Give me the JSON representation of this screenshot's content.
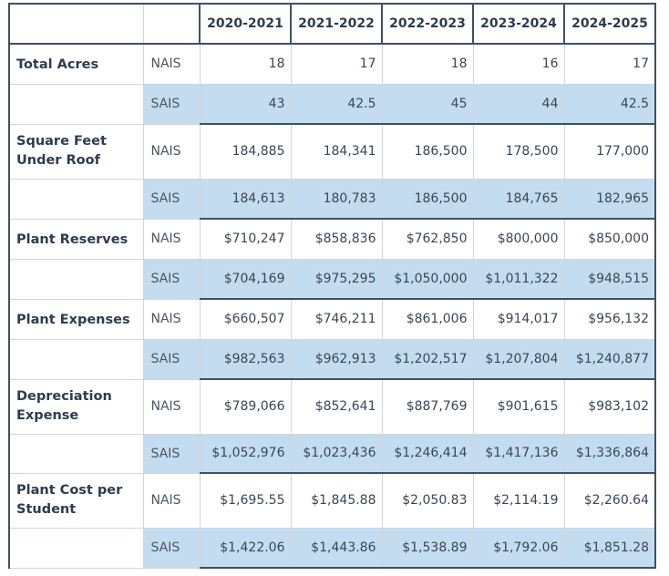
{
  "headers": {
    "years": [
      "2020-2021",
      "2021-2022",
      "2022-2023",
      "2023-2024",
      "2024-2025"
    ]
  },
  "rows": [
    {
      "label": "Total Acres",
      "nais": [
        "18",
        "17",
        "18",
        "16",
        "17"
      ],
      "sais": [
        "43",
        "42.5",
        "45",
        "44",
        "42.5"
      ]
    },
    {
      "label": "Square Feet Under Roof",
      "nais": [
        "184,885",
        "184,341",
        "186,500",
        "178,500",
        "177,000"
      ],
      "sais": [
        "184,613",
        "180,783",
        "186,500",
        "184,765",
        "182,965"
      ]
    },
    {
      "label": "Plant Reserves",
      "nais": [
        "$710,247",
        "$858,836",
        "$762,850",
        "$800,000",
        "$850,000"
      ],
      "sais": [
        "$704,169",
        "$975,295",
        "$1,050,000",
        "$1,011,322",
        "$948,515"
      ]
    },
    {
      "label": "Plant Expenses",
      "nais": [
        "$660,507",
        "$746,211",
        "$861,006",
        "$914,017",
        "$956,132"
      ],
      "sais": [
        "$982,563",
        "$962,913",
        "$1,202,517",
        "$1,207,804",
        "$1,240,877"
      ]
    },
    {
      "label": "Depreciation Expense",
      "nais": [
        "$789,066",
        "$852,641",
        "$887,769",
        "$901,615",
        "$983,102"
      ],
      "sais": [
        "$1,052,976",
        "$1,023,436",
        "$1,246,414",
        "$1,417,136",
        "$1,336,864"
      ]
    },
    {
      "label": "Plant Cost per Student",
      "nais": [
        "$1,695.55",
        "$1,845.88",
        "$2,050.83",
        "$2,114.19",
        "$2,260.64"
      ],
      "sais": [
        "$1,422.06",
        "$1,443.86",
        "$1,538.89",
        "$1,792.06",
        "$1,851.28"
      ]
    }
  ],
  "type_labels": {
    "nais": "NAIS",
    "sais": "SAIS"
  },
  "colors": {
    "sais_fill": "#c4dcef",
    "border_dark": "#3f5161",
    "text": "#2f3c4c"
  }
}
